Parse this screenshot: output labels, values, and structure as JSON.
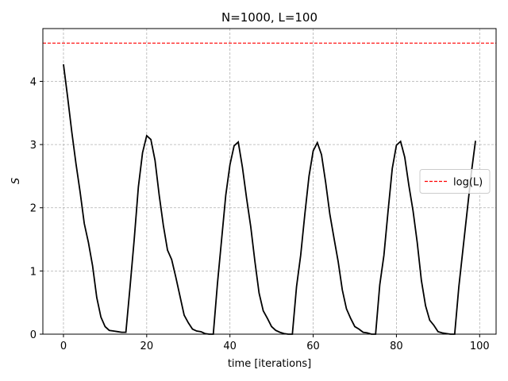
{
  "chart_data": {
    "type": "line",
    "title": "N=1000, L=100",
    "x_label": "time [iterations]",
    "y_label": "S",
    "x": [
      0,
      1,
      2,
      3,
      4,
      5,
      6,
      7,
      8,
      9,
      10,
      11,
      12,
      13,
      14,
      15,
      16,
      17,
      18,
      19,
      20,
      21,
      22,
      23,
      24,
      25,
      26,
      27,
      28,
      29,
      30,
      31,
      32,
      33,
      34,
      35,
      36,
      37,
      38,
      39,
      40,
      41,
      42,
      43,
      44,
      45,
      46,
      47,
      48,
      49,
      50,
      51,
      52,
      53,
      54,
      55,
      56,
      57,
      58,
      59,
      60,
      61,
      62,
      63,
      64,
      65,
      66,
      67,
      68,
      69,
      70,
      71,
      72,
      73,
      74,
      75,
      76,
      77,
      78,
      79,
      80,
      81,
      82,
      83,
      84,
      85,
      86,
      87,
      88,
      89,
      90,
      91,
      92,
      93,
      94,
      95,
      96,
      97,
      98,
      99
    ],
    "series": [
      {
        "color": "#000000",
        "values": [
          4.27,
          3.75,
          3.2,
          2.7,
          2.25,
          1.75,
          1.45,
          1.08,
          0.58,
          0.27,
          0.12,
          0.06,
          0.05,
          0.04,
          0.03,
          0.03,
          0.75,
          1.5,
          2.33,
          2.87,
          3.14,
          3.08,
          2.75,
          2.2,
          1.72,
          1.33,
          1.18,
          0.9,
          0.6,
          0.3,
          0.18,
          0.08,
          0.05,
          0.04,
          0.01,
          0.0,
          0.0,
          0.8,
          1.5,
          2.2,
          2.68,
          2.98,
          3.04,
          2.64,
          2.15,
          1.7,
          1.15,
          0.65,
          0.37,
          0.25,
          0.12,
          0.06,
          0.03,
          0.01,
          0.0,
          0.0,
          0.75,
          1.25,
          1.9,
          2.5,
          2.9,
          3.03,
          2.84,
          2.4,
          1.9,
          1.52,
          1.15,
          0.7,
          0.4,
          0.25,
          0.12,
          0.08,
          0.03,
          0.02,
          0.0,
          0.0,
          0.78,
          1.25,
          1.95,
          2.62,
          2.99,
          3.05,
          2.8,
          2.35,
          1.95,
          1.45,
          0.85,
          0.45,
          0.22,
          0.14,
          0.04,
          0.02,
          0.01,
          0.0,
          0.0,
          0.75,
          1.35,
          1.95,
          2.55,
          3.06
        ]
      }
    ],
    "reference_lines": [
      {
        "name": "log(L)",
        "y": 4.605,
        "color": "#ff0000"
      }
    ],
    "xlim": [
      -4.95,
      103.95
    ],
    "ylim": [
      0,
      4.835
    ],
    "xticks": [
      0,
      20,
      40,
      60,
      80,
      100
    ],
    "yticks": [
      0,
      1,
      2,
      3,
      4
    ],
    "grid": true,
    "legend": "center right"
  }
}
